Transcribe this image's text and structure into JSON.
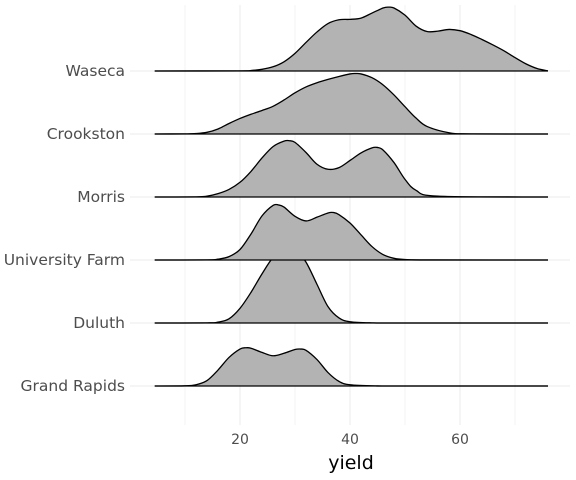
{
  "chart_data": {
    "type": "ridgeline",
    "xlabel": "yield",
    "ylabel": "",
    "title": "",
    "xlim": [
      4.5,
      76
    ],
    "x_ticks": [
      20,
      40,
      60
    ],
    "x_tick_labels": [
      "20",
      "40",
      "60"
    ],
    "grid": true,
    "fill_color": "#b3b3b3",
    "line_color": "#000000",
    "categories": [
      "Grand Rapids",
      "Duluth",
      "University Farm",
      "Morris",
      "Crookston",
      "Waseca"
    ],
    "series": [
      {
        "category": "Grand Rapids",
        "x": [
          4.5,
          10,
          12,
          14,
          16,
          18,
          20,
          21,
          22,
          24,
          26,
          28,
          30,
          31,
          32,
          34,
          36,
          38,
          40,
          45,
          50,
          60,
          76
        ],
        "density": [
          0,
          0.004,
          0.03,
          0.13,
          0.38,
          0.68,
          0.88,
          0.91,
          0.9,
          0.8,
          0.72,
          0.78,
          0.87,
          0.88,
          0.85,
          0.63,
          0.32,
          0.11,
          0.03,
          0.002,
          0,
          0,
          0
        ]
      },
      {
        "category": "Duluth",
        "x": [
          4.5,
          14,
          16,
          18,
          20,
          22,
          24,
          26,
          28,
          29,
          30,
          32,
          34,
          36,
          38,
          40,
          44,
          50,
          76
        ],
        "density": [
          0,
          0.003,
          0.02,
          0.1,
          0.35,
          0.73,
          1.17,
          1.56,
          1.78,
          1.8,
          1.77,
          1.45,
          0.92,
          0.39,
          0.12,
          0.03,
          0.003,
          0,
          0
        ]
      },
      {
        "category": "University Farm",
        "x": [
          4.5,
          14,
          16,
          18,
          20,
          22,
          24,
          26,
          27,
          28,
          30,
          32,
          34,
          36,
          37,
          38,
          40,
          42,
          44,
          46,
          48,
          50,
          55,
          76
        ],
        "density": [
          0,
          0.003,
          0.02,
          0.08,
          0.25,
          0.62,
          1.05,
          1.3,
          1.31,
          1.26,
          1.04,
          0.93,
          1.02,
          1.12,
          1.13,
          1.08,
          0.88,
          0.6,
          0.32,
          0.13,
          0.04,
          0.01,
          0.001,
          0
        ]
      },
      {
        "category": "Morris",
        "x": [
          4.5,
          12,
          14,
          16,
          18,
          20,
          22,
          24,
          26,
          28,
          29,
          30,
          32,
          34,
          36,
          38,
          40,
          42,
          44,
          45,
          46,
          48,
          50,
          52,
          56,
          76
        ],
        "density": [
          0,
          0.003,
          0.02,
          0.08,
          0.18,
          0.35,
          0.61,
          0.93,
          1.2,
          1.33,
          1.34,
          1.3,
          1.06,
          0.78,
          0.66,
          0.7,
          0.87,
          1.05,
          1.17,
          1.18,
          1.12,
          0.82,
          0.42,
          0.16,
          0.02,
          0
        ]
      },
      {
        "category": "Crookston",
        "x": [
          4.5,
          10,
          12,
          14,
          16,
          18,
          20,
          22,
          24,
          26,
          28,
          30,
          32,
          34,
          36,
          38,
          40,
          41,
          42,
          44,
          46,
          48,
          50,
          52,
          54,
          58,
          62,
          76
        ],
        "density": [
          0,
          0.003,
          0.01,
          0.04,
          0.12,
          0.25,
          0.37,
          0.47,
          0.56,
          0.66,
          0.81,
          0.98,
          1.12,
          1.22,
          1.3,
          1.37,
          1.43,
          1.44,
          1.43,
          1.34,
          1.17,
          0.93,
          0.65,
          0.38,
          0.18,
          0.03,
          0.003,
          0
        ]
      },
      {
        "category": "Waseca",
        "x": [
          4.5,
          20,
          22,
          24,
          26,
          28,
          30,
          32,
          34,
          36,
          38,
          40,
          42,
          44,
          46,
          47,
          48,
          50,
          52,
          54,
          56,
          58,
          60,
          62,
          64,
          66,
          68,
          70,
          72,
          74,
          76
        ],
        "density": [
          0,
          0.003,
          0.012,
          0.04,
          0.1,
          0.22,
          0.42,
          0.68,
          0.93,
          1.13,
          1.22,
          1.23,
          1.26,
          1.38,
          1.5,
          1.52,
          1.5,
          1.33,
          1.07,
          0.94,
          0.95,
          0.99,
          0.96,
          0.87,
          0.75,
          0.62,
          0.48,
          0.32,
          0.17,
          0.06,
          0.003
        ]
      }
    ]
  }
}
